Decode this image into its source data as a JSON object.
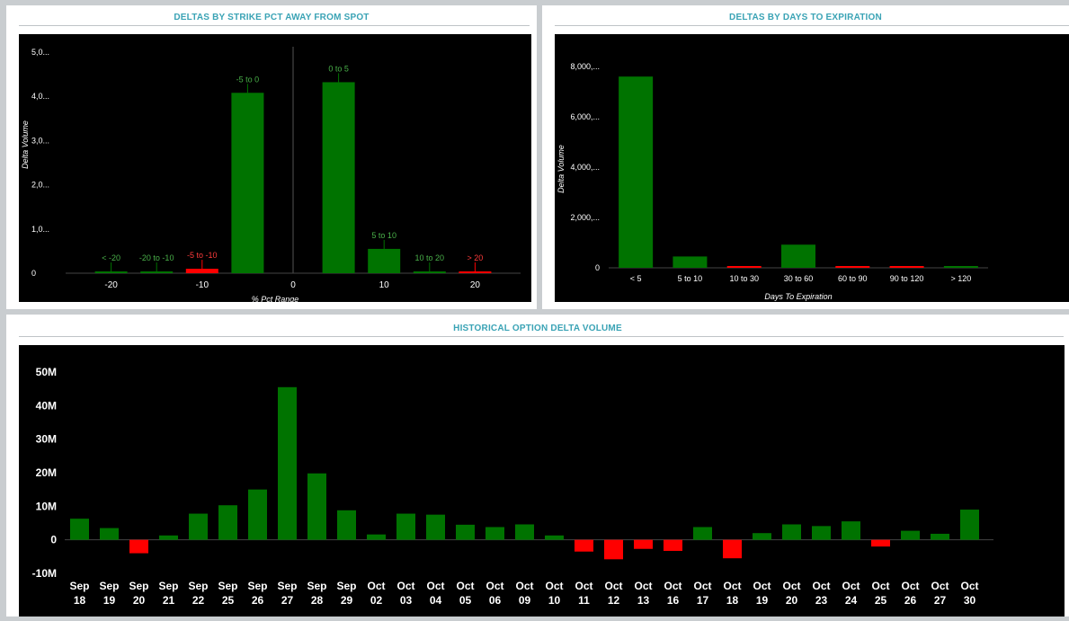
{
  "panels": {
    "strike": {
      "title": "DELTAS BY STRIKE PCT AWAY FROM SPOT"
    },
    "days": {
      "title": "DELTAS BY DAYS TO EXPIRATION"
    },
    "history": {
      "title": "HISTORICAL OPTION DELTA VOLUME"
    }
  },
  "colors": {
    "positive": "#007300",
    "negative": "#ff0000",
    "plot_bg": "#000000",
    "title": "#3aa3b5"
  },
  "chart_data": [
    {
      "id": "strike",
      "type": "bar",
      "xlabel": "% Pct Range",
      "ylabel": "Delta Volume",
      "xlim": [
        -25,
        25
      ],
      "ylim": [
        0,
        5000000
      ],
      "x_ticks": [
        -20,
        -10,
        0,
        10,
        20
      ],
      "y_ticks": [
        {
          "value": 0,
          "label": "0"
        },
        {
          "value": 1000000,
          "label": "1,0..."
        },
        {
          "value": 2000000,
          "label": "2,0..."
        },
        {
          "value": 3000000,
          "label": "3,0..."
        },
        {
          "value": 4000000,
          "label": "4,0..."
        },
        {
          "value": 5000000,
          "label": "5,0..."
        }
      ],
      "bars": [
        {
          "label": "< -20",
          "center": -20,
          "value": 30000,
          "sign": "positive"
        },
        {
          "label": "-20 to -10",
          "center": -15,
          "value": 15000,
          "sign": "positive"
        },
        {
          "label": "-5 to -10",
          "center": -10,
          "value": 100000,
          "sign": "negative"
        },
        {
          "label": "-5 to 0",
          "center": -5,
          "value": 4080000,
          "sign": "positive"
        },
        {
          "label": "0 to 5",
          "center": 5,
          "value": 4320000,
          "sign": "positive"
        },
        {
          "label": "5 to 10",
          "center": 10,
          "value": 550000,
          "sign": "positive"
        },
        {
          "label": "10 to 20",
          "center": 15,
          "value": 10000,
          "sign": "positive"
        },
        {
          "label": "> 20",
          "center": 20,
          "value": 10000,
          "sign": "negative"
        }
      ]
    },
    {
      "id": "days",
      "type": "bar",
      "xlabel": "Days To Expiration",
      "ylabel": "Delta Volume",
      "ylim": [
        0,
        8000000
      ],
      "y_ticks": [
        {
          "value": 0,
          "label": "0"
        },
        {
          "value": 2000000,
          "label": "2,000,..."
        },
        {
          "value": 4000000,
          "label": "4,000,..."
        },
        {
          "value": 6000000,
          "label": "6,000,..."
        },
        {
          "value": 8000000,
          "label": "8,000,..."
        }
      ],
      "bars": [
        {
          "label": "< 5",
          "value": 7600000,
          "sign": "positive"
        },
        {
          "label": "5 to 10",
          "value": 450000,
          "sign": "positive"
        },
        {
          "label": "10 to 30",
          "value": 30000,
          "sign": "negative"
        },
        {
          "label": "30 to 60",
          "value": 920000,
          "sign": "positive"
        },
        {
          "label": "60 to 90",
          "value": 30000,
          "sign": "negative"
        },
        {
          "label": "90 to 120",
          "value": 40000,
          "sign": "negative"
        },
        {
          "label": "> 120",
          "value": 20000,
          "sign": "positive"
        }
      ]
    },
    {
      "id": "history",
      "type": "bar",
      "xlabel": "",
      "ylabel": "",
      "ylim": [
        -10000000,
        50000000
      ],
      "y_ticks": [
        {
          "value": 50000000,
          "label": "50M"
        },
        {
          "value": 40000000,
          "label": "40M"
        },
        {
          "value": 30000000,
          "label": "30M"
        },
        {
          "value": 20000000,
          "label": "20M"
        },
        {
          "value": 10000000,
          "label": "10M"
        },
        {
          "value": 0,
          "label": "0"
        },
        {
          "value": -10000000,
          "label": "-10M"
        }
      ],
      "categories": [
        {
          "month": "Sep",
          "day": "18"
        },
        {
          "month": "Sep",
          "day": "19"
        },
        {
          "month": "Sep",
          "day": "20"
        },
        {
          "month": "Sep",
          "day": "21"
        },
        {
          "month": "Sep",
          "day": "22"
        },
        {
          "month": "Sep",
          "day": "25"
        },
        {
          "month": "Sep",
          "day": "26"
        },
        {
          "month": "Sep",
          "day": "27"
        },
        {
          "month": "Sep",
          "day": "28"
        },
        {
          "month": "Sep",
          "day": "29"
        },
        {
          "month": "Oct",
          "day": "02"
        },
        {
          "month": "Oct",
          "day": "03"
        },
        {
          "month": "Oct",
          "day": "04"
        },
        {
          "month": "Oct",
          "day": "05"
        },
        {
          "month": "Oct",
          "day": "06"
        },
        {
          "month": "Oct",
          "day": "09"
        },
        {
          "month": "Oct",
          "day": "10"
        },
        {
          "month": "Oct",
          "day": "11"
        },
        {
          "month": "Oct",
          "day": "12"
        },
        {
          "month": "Oct",
          "day": "13"
        },
        {
          "month": "Oct",
          "day": "16"
        },
        {
          "month": "Oct",
          "day": "17"
        },
        {
          "month": "Oct",
          "day": "18"
        },
        {
          "month": "Oct",
          "day": "19"
        },
        {
          "month": "Oct",
          "day": "20"
        },
        {
          "month": "Oct",
          "day": "23"
        },
        {
          "month": "Oct",
          "day": "24"
        },
        {
          "month": "Oct",
          "day": "25"
        },
        {
          "month": "Oct",
          "day": "26"
        },
        {
          "month": "Oct",
          "day": "27"
        },
        {
          "month": "Oct",
          "day": "30"
        }
      ],
      "values": [
        6300000,
        3500000,
        -4000000,
        1300000,
        7800000,
        10300000,
        15000000,
        45500000,
        19800000,
        8800000,
        1600000,
        7800000,
        7500000,
        4500000,
        3800000,
        4600000,
        1300000,
        -3500000,
        -5800000,
        -2700000,
        -3300000,
        3800000,
        -5500000,
        2000000,
        4600000,
        4100000,
        5500000,
        -2000000,
        2700000,
        1800000,
        9000000
      ]
    }
  ]
}
